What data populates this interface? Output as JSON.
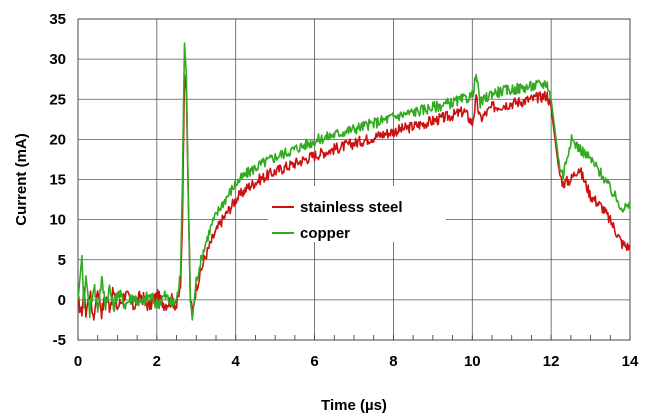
{
  "chart_data": {
    "type": "line",
    "title": "",
    "xlabel": "Time (µs)",
    "ylabel": "Current (mA)",
    "xlim": [
      0,
      14
    ],
    "ylim": [
      -5,
      35
    ],
    "xticks": [
      0,
      2,
      4,
      6,
      8,
      10,
      12,
      14
    ],
    "yticks": [
      -5,
      0,
      5,
      10,
      15,
      20,
      25,
      30,
      35
    ],
    "grid": true,
    "legend_position": "center",
    "series": [
      {
        "name": "stainless steel",
        "color": "#cc1111",
        "points": [
          [
            0.0,
            0.0
          ],
          [
            0.1,
            -2.0
          ],
          [
            0.15,
            1.5
          ],
          [
            0.2,
            -1.5
          ],
          [
            0.3,
            1.0
          ],
          [
            0.4,
            -2.5
          ],
          [
            0.5,
            1.5
          ],
          [
            0.6,
            -1.5
          ],
          [
            0.7,
            0.5
          ],
          [
            0.8,
            -0.8
          ],
          [
            0.9,
            1.0
          ],
          [
            1.0,
            -1.0
          ],
          [
            1.2,
            0.8
          ],
          [
            1.4,
            -0.8
          ],
          [
            1.6,
            0.5
          ],
          [
            1.8,
            -0.8
          ],
          [
            2.0,
            0.5
          ],
          [
            2.2,
            -0.5
          ],
          [
            2.4,
            0.0
          ],
          [
            2.5,
            -0.8
          ],
          [
            2.6,
            1.5
          ],
          [
            2.65,
            10.0
          ],
          [
            2.7,
            28.0
          ],
          [
            2.75,
            26.0
          ],
          [
            2.8,
            12.0
          ],
          [
            2.85,
            0.0
          ],
          [
            2.9,
            -1.5
          ],
          [
            3.0,
            1.5
          ],
          [
            3.2,
            5.0
          ],
          [
            3.4,
            7.5
          ],
          [
            3.6,
            9.5
          ],
          [
            3.8,
            11.0
          ],
          [
            4.0,
            12.5
          ],
          [
            4.3,
            14.0
          ],
          [
            4.6,
            15.0
          ],
          [
            5.0,
            16.0
          ],
          [
            5.5,
            17.0
          ],
          [
            6.0,
            18.0
          ],
          [
            6.5,
            18.8
          ],
          [
            7.0,
            19.5
          ],
          [
            7.5,
            20.3
          ],
          [
            8.0,
            21.0
          ],
          [
            8.5,
            21.6
          ],
          [
            9.0,
            22.3
          ],
          [
            9.5,
            23.0
          ],
          [
            9.8,
            23.5
          ],
          [
            10.0,
            22.0
          ],
          [
            10.1,
            25.0
          ],
          [
            10.2,
            22.5
          ],
          [
            10.5,
            24.0
          ],
          [
            11.0,
            24.5
          ],
          [
            11.5,
            25.0
          ],
          [
            11.9,
            25.5
          ],
          [
            12.0,
            24.0
          ],
          [
            12.2,
            16.0
          ],
          [
            12.3,
            14.5
          ],
          [
            12.5,
            15.0
          ],
          [
            12.7,
            16.5
          ],
          [
            13.0,
            13.0
          ],
          [
            13.3,
            11.5
          ],
          [
            13.6,
            9.0
          ],
          [
            13.8,
            7.0
          ],
          [
            14.0,
            6.5
          ]
        ]
      },
      {
        "name": "copper",
        "color": "#33aa22",
        "points": [
          [
            0.0,
            0.0
          ],
          [
            0.1,
            5.5
          ],
          [
            0.15,
            -1.0
          ],
          [
            0.2,
            3.0
          ],
          [
            0.3,
            -1.5
          ],
          [
            0.4,
            2.0
          ],
          [
            0.5,
            -1.0
          ],
          [
            0.6,
            2.5
          ],
          [
            0.7,
            -0.5
          ],
          [
            0.8,
            1.5
          ],
          [
            0.9,
            -1.0
          ],
          [
            1.0,
            1.0
          ],
          [
            1.2,
            -0.5
          ],
          [
            1.4,
            0.5
          ],
          [
            1.6,
            -0.5
          ],
          [
            1.8,
            0.5
          ],
          [
            2.0,
            -0.5
          ],
          [
            2.2,
            0.5
          ],
          [
            2.4,
            -0.5
          ],
          [
            2.5,
            0.0
          ],
          [
            2.6,
            3.0
          ],
          [
            2.65,
            15.0
          ],
          [
            2.7,
            32.0
          ],
          [
            2.75,
            28.0
          ],
          [
            2.8,
            12.0
          ],
          [
            2.85,
            0.0
          ],
          [
            2.9,
            -2.5
          ],
          [
            3.0,
            2.5
          ],
          [
            3.2,
            6.5
          ],
          [
            3.4,
            9.5
          ],
          [
            3.6,
            11.5
          ],
          [
            3.8,
            13.0
          ],
          [
            4.0,
            14.5
          ],
          [
            4.3,
            15.8
          ],
          [
            4.6,
            16.8
          ],
          [
            5.0,
            17.8
          ],
          [
            5.5,
            18.8
          ],
          [
            6.0,
            19.8
          ],
          [
            6.5,
            20.6
          ],
          [
            7.0,
            21.3
          ],
          [
            7.5,
            22.0
          ],
          [
            8.0,
            22.8
          ],
          [
            8.5,
            23.4
          ],
          [
            9.0,
            24.0
          ],
          [
            9.5,
            24.6
          ],
          [
            9.8,
            25.0
          ],
          [
            10.0,
            25.5
          ],
          [
            10.1,
            28.0
          ],
          [
            10.2,
            24.5
          ],
          [
            10.5,
            25.8
          ],
          [
            11.0,
            26.2
          ],
          [
            11.5,
            26.6
          ],
          [
            11.9,
            27.0
          ],
          [
            12.0,
            25.0
          ],
          [
            12.2,
            17.0
          ],
          [
            12.3,
            15.5
          ],
          [
            12.5,
            20.0
          ],
          [
            12.7,
            19.0
          ],
          [
            13.0,
            17.5
          ],
          [
            13.3,
            15.5
          ],
          [
            13.6,
            13.0
          ],
          [
            13.8,
            11.5
          ],
          [
            14.0,
            11.5
          ]
        ]
      }
    ]
  }
}
